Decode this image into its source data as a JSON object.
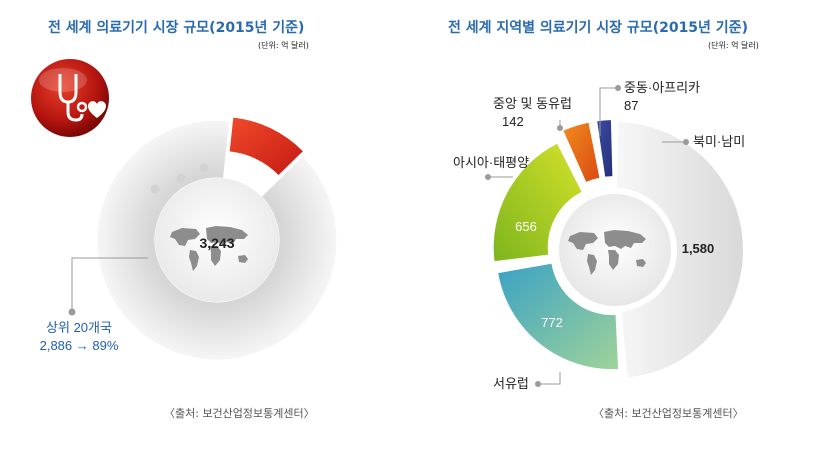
{
  "left_chart": {
    "title": "전 세계 의료기기 시장 규모(2015년 기준)",
    "unit": "(단위: 억 달러)",
    "source": "〈출처: 보건산업정보통계센터〉",
    "icon": "stethoscope-heart-icon"
  },
  "right_chart": {
    "title": "전 세계 지역별 의료기기 시장 규모(2015년 기준)",
    "unit": "(단위: 억 달러)",
    "source": "〈출처: 보건산업정보통계센터〉"
  },
  "chart_data": [
    {
      "type": "pie",
      "title": "전 세계 의료기기 시장 규모(2015년 기준)",
      "total_label": "3,243",
      "total": 3243,
      "slices": [
        {
          "label": "상위 20개국",
          "value": 2886,
          "value_label": "2,886 → 89%",
          "percent": 89,
          "color": "#eeeeee"
        },
        {
          "label": "",
          "value": 357,
          "color": "#e0321c"
        }
      ]
    },
    {
      "type": "pie",
      "title": "전 세계 지역별 의료기기 시장 규모(2015년 기준)",
      "slices": [
        {
          "label": "북미·남미",
          "value": 1580,
          "value_label": "1,580",
          "color": "#e9e9e9"
        },
        {
          "label": "서유럽",
          "value": 772,
          "value_label": "772",
          "color": "#5bb3c6"
        },
        {
          "label": "아시아·태평양",
          "value": 656,
          "value_label": "656",
          "color": "#9cc41c"
        },
        {
          "label": "중앙 및 동유럽",
          "value": 142,
          "value_label": "142",
          "color": "#e8641a"
        },
        {
          "label": "중동·아프리카",
          "value": 87,
          "value_label": "87",
          "color": "#2f3b8f"
        }
      ]
    }
  ],
  "colors": {
    "title_blue": "#2a6bb0",
    "callout_blue": "#1f5fb0",
    "leader_gray": "#9a9a9a",
    "map_gray": "#8d8d8d"
  }
}
